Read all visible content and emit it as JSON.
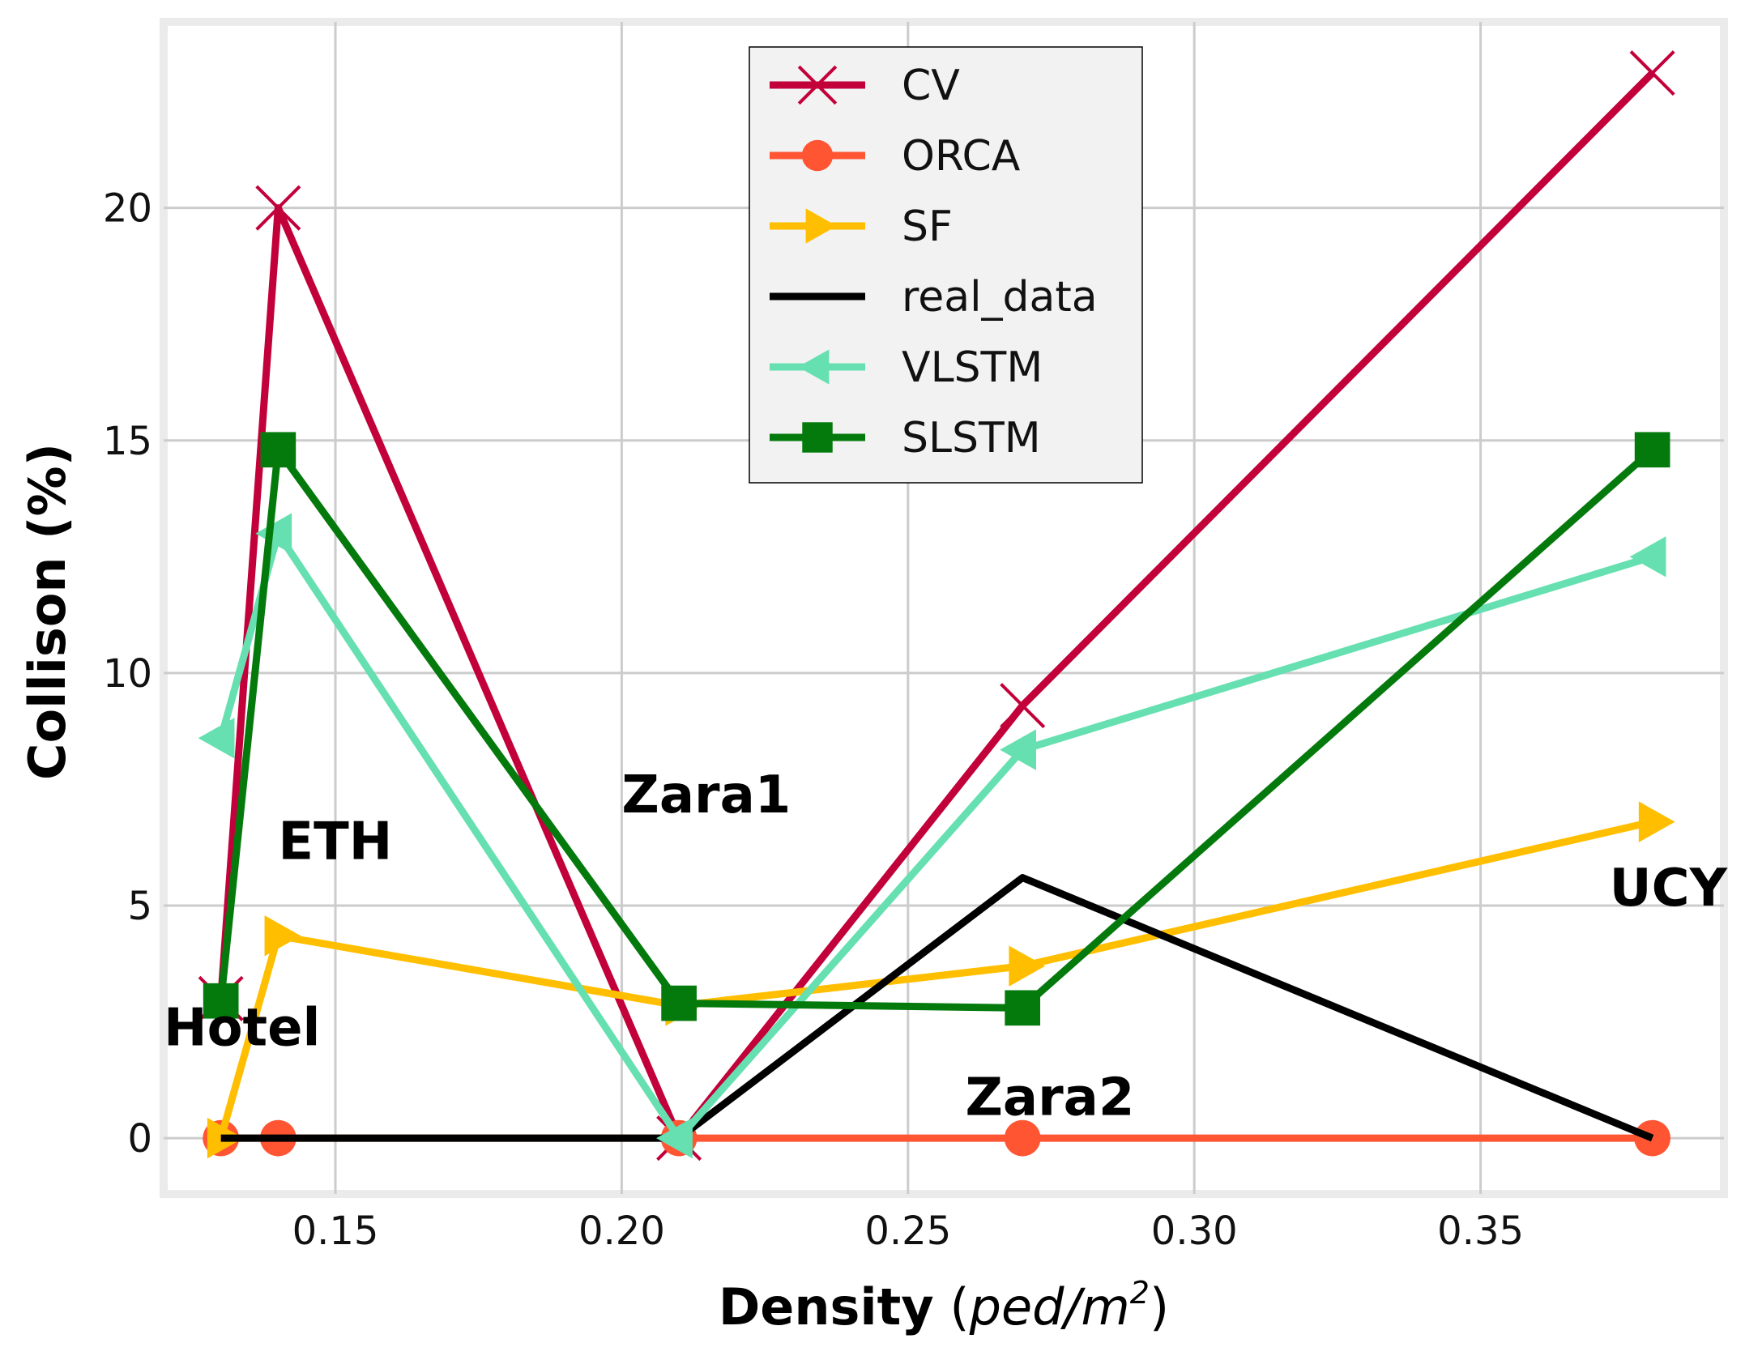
{
  "chart_data": {
    "type": "line",
    "xlabel_bold": "Density",
    "xlabel_unit_open": "(",
    "xlabel_unit_main": "ped/m",
    "xlabel_unit_sup": "2",
    "xlabel_unit_close": ")",
    "ylabel": "Collison (%)",
    "xlim": [
      0.12,
      0.3925
    ],
    "ylim": [
      -1.2,
      24.0
    ],
    "x_ticks": [
      0.15,
      0.2,
      0.25,
      0.3,
      0.35
    ],
    "x_tick_labels": [
      "0.15",
      "0.20",
      "0.25",
      "0.30",
      "0.35"
    ],
    "y_ticks": [
      0,
      5,
      10,
      15,
      20
    ],
    "y_tick_labels": [
      "0",
      "5",
      "10",
      "15",
      "20"
    ],
    "grid": true,
    "legend_position": "top-center",
    "series": [
      {
        "name": "CV",
        "color": "#c2003a",
        "marker": "x",
        "x": [
          0.13,
          0.14,
          0.21,
          0.27,
          0.38
        ],
        "y": [
          3.0,
          20.0,
          0.0,
          9.3,
          22.9
        ]
      },
      {
        "name": "ORCA",
        "color": "#ff5533",
        "marker": "circle",
        "x": [
          0.13,
          0.14,
          0.21,
          0.27,
          0.38
        ],
        "y": [
          0.0,
          0.0,
          0.0,
          0.0,
          0.0
        ]
      },
      {
        "name": "SF",
        "color": "#ffbf00",
        "marker": "triangle-right",
        "x": [
          0.13,
          0.14,
          0.21,
          0.27,
          0.38
        ],
        "y": [
          0.0,
          4.35,
          2.85,
          3.7,
          6.8
        ]
      },
      {
        "name": "real_data",
        "color": "#000000",
        "marker": "none",
        "x": [
          0.13,
          0.14,
          0.21,
          0.27,
          0.38
        ],
        "y": [
          0.0,
          0.0,
          0.0,
          5.6,
          0.0
        ]
      },
      {
        "name": "VLSTM",
        "color": "#66e0b0",
        "marker": "triangle-left",
        "x": [
          0.13,
          0.14,
          0.21,
          0.27,
          0.38
        ],
        "y": [
          8.6,
          13.0,
          0.0,
          8.35,
          12.5
        ]
      },
      {
        "name": "SLSTM",
        "color": "#047a0c",
        "marker": "square",
        "x": [
          0.13,
          0.14,
          0.21,
          0.27,
          0.38
        ],
        "y": [
          2.95,
          14.8,
          2.9,
          2.8,
          14.8
        ]
      }
    ],
    "annotations": [
      {
        "text": "Hotel",
        "x": 0.12,
        "y": 2.0
      },
      {
        "text": "ETH",
        "x": 0.14,
        "y": 6.0
      },
      {
        "text": "Zara1",
        "x": 0.2,
        "y": 7.0
      },
      {
        "text": "Zara2",
        "x": 0.26,
        "y": 0.5
      },
      {
        "text": "UCY",
        "x": 0.3725,
        "y": 5.0
      }
    ]
  }
}
